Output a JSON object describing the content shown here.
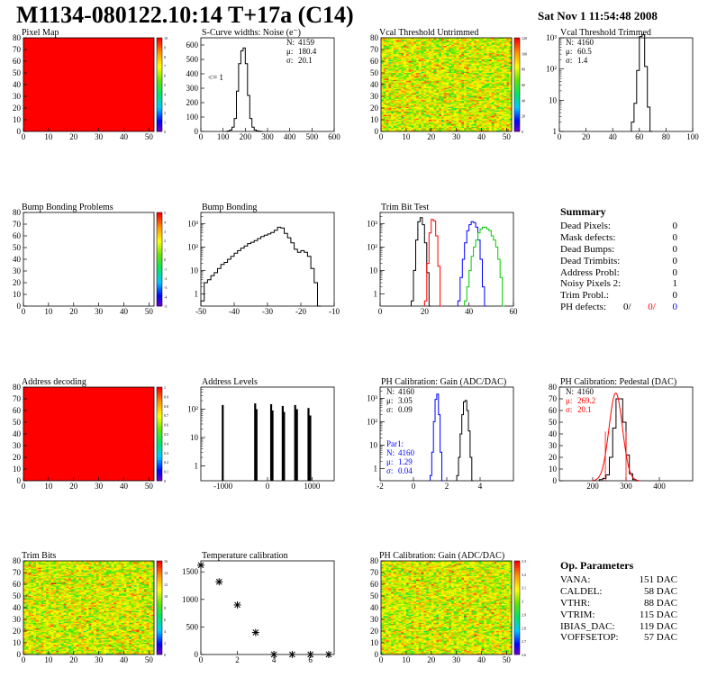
{
  "header": {
    "title": "M1134-080122.10:14 T+17a (C14)",
    "date": "Sat Nov  1 11:54:48 2008"
  },
  "colors": {
    "red": "#ff0000",
    "blue": "#0000ff",
    "green": "#00cc00",
    "black": "#000000"
  },
  "summary": {
    "title": "Summary",
    "rows": [
      {
        "label": "Dead Pixels:",
        "value": "0"
      },
      {
        "label": "Mask defects:",
        "value": "0"
      },
      {
        "label": "Dead Bumps:",
        "value": "0"
      },
      {
        "label": "Dead Trimbits:",
        "value": "0"
      },
      {
        "label": "Address Probl:",
        "value": "0"
      },
      {
        "label": "Noisy Pixels 2:",
        "value": "1"
      },
      {
        "label": "Trim Probl.:",
        "value": "0"
      }
    ],
    "ph_label": "PH defects:",
    "ph_v1": "0/",
    "ph_v2": "0/",
    "ph_v3": "0"
  },
  "params": {
    "title": "Op. Parameters",
    "rows": [
      {
        "label": "VANA:",
        "value": "151 DAC"
      },
      {
        "label": "CALDEL:",
        "value": "58 DAC"
      },
      {
        "label": "VTHR:",
        "value": "88 DAC"
      },
      {
        "label": "VTRIM:",
        "value": "115 DAC"
      },
      {
        "label": "IBIAS_DAC:",
        "value": "119 DAC"
      },
      {
        "label": "VOFFSETOP:",
        "value": "57 DAC"
      }
    ]
  },
  "chart_data": [
    {
      "id": "pixel-map",
      "type": "heatmap",
      "title": "Pixel Map",
      "xlim": [
        0,
        52
      ],
      "ylim": [
        0,
        80
      ],
      "xticks": [
        "0",
        "10",
        "20",
        "30",
        "40",
        "50"
      ],
      "yticks": [
        "0",
        "10",
        "20",
        "30",
        "40",
        "50",
        "60",
        "70",
        "80"
      ],
      "fill": "uniform",
      "z_value": 10,
      "palette_ticks": [
        "0",
        "1",
        "2",
        "3",
        "4",
        "5",
        "6",
        "7",
        "8",
        "9",
        "10"
      ]
    },
    {
      "id": "scurve",
      "type": "histogram",
      "title": "S-Curve widths: Noise (e⁻)",
      "xlim": [
        0,
        600
      ],
      "ylim": [
        0,
        650
      ],
      "log": false,
      "xticks": [
        "0",
        "100",
        "200",
        "300",
        "400",
        "500",
        "600"
      ],
      "yticks": [
        "0",
        "100",
        "200",
        "300",
        "400",
        "500",
        "600"
      ],
      "bins": [
        [
          110,
          0
        ],
        [
          120,
          3
        ],
        [
          130,
          10
        ],
        [
          140,
          30
        ],
        [
          150,
          90
        ],
        [
          160,
          280
        ],
        [
          170,
          470
        ],
        [
          180,
          560
        ],
        [
          190,
          580
        ],
        [
          200,
          470
        ],
        [
          210,
          250
        ],
        [
          220,
          90
        ],
        [
          230,
          30
        ],
        [
          240,
          10
        ],
        [
          250,
          4
        ],
        [
          260,
          2
        ],
        [
          270,
          0
        ]
      ],
      "stats": [
        {
          "label": "N:",
          "value": "4159"
        },
        {
          "label": "μ:",
          "value": "180.4"
        },
        {
          "label": "σ:",
          "value": "20.1"
        }
      ],
      "annotation": "<= 1"
    },
    {
      "id": "vcal-untrimmed",
      "type": "heatmap",
      "title": "Vcal Threshold Untrimmed",
      "xlim": [
        0,
        52
      ],
      "ylim": [
        0,
        80
      ],
      "xticks": [
        "0",
        "10",
        "20",
        "30",
        "40",
        "50"
      ],
      "yticks": [
        "0",
        "10",
        "20",
        "30",
        "40",
        "50",
        "60",
        "70",
        "80"
      ],
      "fill": "random",
      "z_range": [
        85,
        125
      ],
      "palette_ticks": [
        "0",
        "20",
        "40",
        "60",
        "80",
        "100",
        "120"
      ]
    },
    {
      "id": "vcal-trimmed",
      "type": "histogram",
      "title": "Vcal Threshold Trimmed",
      "xlim": [
        0,
        100
      ],
      "log": true,
      "ydecades": [
        1,
        1000
      ],
      "xticks": [
        "0",
        "20",
        "40",
        "60",
        "80",
        "100"
      ],
      "yticks": [
        "1",
        "10",
        "10²",
        "10³"
      ],
      "bins": [
        [
          54,
          2
        ],
        [
          56,
          8
        ],
        [
          58,
          90
        ],
        [
          60,
          1100
        ],
        [
          62,
          1250
        ],
        [
          64,
          120
        ],
        [
          66,
          6
        ],
        [
          68,
          0
        ]
      ],
      "stats": [
        {
          "label": "N:",
          "value": "4160"
        },
        {
          "label": "μ:",
          "value": "60.5"
        },
        {
          "label": "σ:",
          "value": "1.4"
        }
      ]
    },
    {
      "id": "bump-map",
      "type": "heatmap",
      "title": "Bump Bonding Problems",
      "xlim": [
        0,
        52
      ],
      "ylim": [
        0,
        80
      ],
      "xticks": [
        "0",
        "10",
        "20",
        "30",
        "40",
        "50"
      ],
      "yticks": [
        "0",
        "10",
        "20",
        "30",
        "40",
        "50",
        "60",
        "70",
        "80"
      ],
      "fill": "empty",
      "palette_ticks": [
        "-5",
        "-4",
        "-3",
        "-2",
        "-1",
        "0",
        "1",
        "2",
        "3",
        "4",
        "5"
      ]
    },
    {
      "id": "bump-bonding",
      "type": "histogram",
      "title": "Bump Bonding",
      "xlim": [
        -50,
        -10
      ],
      "log": true,
      "ydecades": [
        0.3,
        3000
      ],
      "xticks": [
        "-50",
        "-40",
        "-30",
        "-20",
        "-10"
      ],
      "yticks": [
        "1",
        "10",
        "10²",
        "10³"
      ],
      "bins": [
        [
          -50,
          0.5
        ],
        [
          -49,
          3
        ],
        [
          -48,
          4
        ],
        [
          -47,
          6
        ],
        [
          -46,
          8
        ],
        [
          -45,
          12
        ],
        [
          -44,
          18
        ],
        [
          -43,
          22
        ],
        [
          -42,
          30
        ],
        [
          -41,
          40
        ],
        [
          -40,
          55
        ],
        [
          -39,
          70
        ],
        [
          -38,
          90
        ],
        [
          -37,
          110
        ],
        [
          -36,
          140
        ],
        [
          -35,
          160
        ],
        [
          -34,
          190
        ],
        [
          -33,
          230
        ],
        [
          -32,
          280
        ],
        [
          -31,
          320
        ],
        [
          -30,
          360
        ],
        [
          -29,
          420
        ],
        [
          -28,
          520
        ],
        [
          -27,
          700
        ],
        [
          -26,
          650
        ],
        [
          -25,
          380
        ],
        [
          -24,
          250
        ],
        [
          -23,
          150
        ],
        [
          -22,
          80
        ],
        [
          -21,
          60
        ],
        [
          -20,
          70
        ],
        [
          -19,
          60
        ],
        [
          -18,
          40
        ],
        [
          -17,
          12
        ],
        [
          -16,
          3
        ],
        [
          -15,
          0
        ]
      ]
    },
    {
      "id": "trim-bit-test",
      "type": "histogram",
      "title": "Trim Bit Test",
      "xlim": [
        0,
        60
      ],
      "log": true,
      "ydecades": [
        0.3,
        3000
      ],
      "xticks": [
        "0",
        "20",
        "40",
        "60"
      ],
      "yticks": [
        "1",
        "10",
        "10²",
        "10³"
      ],
      "series": [
        {
          "color": "#000000",
          "bins": [
            [
              14,
              0.5
            ],
            [
              15,
              10
            ],
            [
              16,
              200
            ],
            [
              17,
              1200
            ],
            [
              18,
              1800
            ],
            [
              19,
              900
            ],
            [
              20,
              150
            ],
            [
              21,
              8
            ],
            [
              22,
              0
            ]
          ]
        },
        {
          "color": "#ff0000",
          "bins": [
            [
              20,
              0.5
            ],
            [
              21,
              20
            ],
            [
              22,
              400
            ],
            [
              23,
              1500
            ],
            [
              24,
              1300
            ],
            [
              25,
              300
            ],
            [
              26,
              15
            ],
            [
              27,
              0
            ]
          ]
        },
        {
          "color": "#0000ff",
          "bins": [
            [
              35,
              0.5
            ],
            [
              36,
              5
            ],
            [
              37,
              30
            ],
            [
              38,
              150
            ],
            [
              39,
              500
            ],
            [
              40,
              900
            ],
            [
              41,
              1200
            ],
            [
              42,
              1100
            ],
            [
              43,
              700
            ],
            [
              44,
              200
            ],
            [
              45,
              30
            ],
            [
              46,
              2
            ],
            [
              47,
              0
            ]
          ]
        },
        {
          "color": "#00cc00",
          "bins": [
            [
              38,
              0.5
            ],
            [
              39,
              2
            ],
            [
              40,
              10
            ],
            [
              41,
              40
            ],
            [
              42,
              100
            ],
            [
              43,
              200
            ],
            [
              44,
              400
            ],
            [
              45,
              600
            ],
            [
              46,
              700
            ],
            [
              47,
              700
            ],
            [
              48,
              600
            ],
            [
              49,
              500
            ],
            [
              50,
              300
            ],
            [
              51,
              200
            ],
            [
              52,
              100
            ],
            [
              53,
              30
            ],
            [
              54,
              5
            ],
            [
              55,
              0
            ]
          ]
        }
      ]
    },
    {
      "id": "address-decoding",
      "type": "heatmap",
      "title": "Address decoding",
      "xlim": [
        0,
        52
      ],
      "ylim": [
        0,
        80
      ],
      "xticks": [
        "0",
        "10",
        "20",
        "30",
        "40",
        "50"
      ],
      "yticks": [
        "0",
        "10",
        "20",
        "30",
        "40",
        "50",
        "60",
        "70",
        "80"
      ],
      "fill": "uniform",
      "z_value": 1,
      "palette_ticks": [
        "0",
        "0.1",
        "0.2",
        "0.3",
        "0.4",
        "0.5",
        "0.6",
        "0.7",
        "0.8",
        "0.9",
        "1"
      ]
    },
    {
      "id": "address-levels",
      "type": "histogram",
      "title": "Address Levels",
      "xlim": [
        -1500,
        1500
      ],
      "log": true,
      "ydecades": [
        0.3,
        600
      ],
      "xticks": [
        "-1000",
        "0",
        "1000"
      ],
      "yticks": [
        "1",
        "10",
        "10²"
      ],
      "spikes": [
        [
          -1010,
          140
        ],
        [
          -280,
          160
        ],
        [
          -250,
          100
        ],
        [
          80,
          150
        ],
        [
          110,
          90
        ],
        [
          340,
          130
        ],
        [
          370,
          80
        ],
        [
          620,
          140
        ],
        [
          660,
          100
        ],
        [
          920,
          110
        ],
        [
          960,
          60
        ]
      ]
    },
    {
      "id": "ph-gain",
      "type": "histogram",
      "title": "PH Calibration: Gain (ADC/DAC)",
      "xlim": [
        -2,
        6
      ],
      "log": true,
      "ydecades": [
        0.3,
        3000
      ],
      "xticks": [
        "-2",
        "0",
        "2",
        "4"
      ],
      "yticks": [
        "1",
        "10",
        "10²",
        "10³"
      ],
      "series": [
        {
          "color": "#000000",
          "bins": [
            [
              2.6,
              0.5
            ],
            [
              2.7,
              3
            ],
            [
              2.8,
              30
            ],
            [
              2.9,
              200
            ],
            [
              3.0,
              700
            ],
            [
              3.1,
              800
            ],
            [
              3.2,
              300
            ],
            [
              3.3,
              40
            ],
            [
              3.4,
              3
            ],
            [
              3.5,
              0
            ]
          ]
        },
        {
          "color": "#0000ff",
          "bins": [
            [
              1.0,
              0.5
            ],
            [
              1.1,
              5
            ],
            [
              1.2,
              100
            ],
            [
              1.3,
              900
            ],
            [
              1.4,
              1500
            ],
            [
              1.5,
              200
            ],
            [
              1.6,
              5
            ],
            [
              1.7,
              0
            ]
          ]
        }
      ],
      "stats": [
        {
          "label": "N:",
          "value": "4160"
        },
        {
          "label": "μ:",
          "value": "3.05"
        },
        {
          "label": "σ:",
          "value": "0.09"
        }
      ],
      "stats2_title": "Par1:",
      "stats2": [
        {
          "label": "N:",
          "value": "4160"
        },
        {
          "label": "μ:",
          "value": "1.29"
        },
        {
          "label": "σ:",
          "value": "0.04"
        }
      ]
    },
    {
      "id": "ph-pedestal",
      "type": "histogram",
      "title": "PH Calibration: Pedestal (DAC)",
      "xlim": [
        100,
        500
      ],
      "ylim": [
        0,
        80
      ],
      "log": false,
      "xticks": [
        "200",
        "300",
        "400"
      ],
      "yticks": [
        "0",
        "10",
        "20",
        "30",
        "40",
        "50",
        "60",
        "70",
        "80"
      ],
      "bins": [
        [
          220,
          1
        ],
        [
          230,
          2
        ],
        [
          240,
          5
        ],
        [
          250,
          20
        ],
        [
          260,
          45
        ],
        [
          270,
          70
        ],
        [
          280,
          70
        ],
        [
          290,
          50
        ],
        [
          300,
          22
        ],
        [
          310,
          6
        ],
        [
          320,
          1
        ],
        [
          330,
          0
        ]
      ],
      "stats": [
        {
          "label": "N:",
          "value": "4160",
          "color": "#000000"
        },
        {
          "label": "μ:",
          "value": "269.2",
          "color": "#ff0000"
        },
        {
          "label": "σ:",
          "value": "20.1",
          "color": "#ff0000"
        }
      ]
    },
    {
      "id": "trim-bits",
      "type": "heatmap",
      "title": "Trim Bits",
      "xlim": [
        0,
        52
      ],
      "ylim": [
        0,
        80
      ],
      "xticks": [
        "0",
        "10",
        "20",
        "30",
        "40",
        "50"
      ],
      "yticks": [
        "0",
        "10",
        "20",
        "30",
        "40",
        "50",
        "60",
        "70",
        "80"
      ],
      "fill": "random",
      "z_range": [
        5,
        11
      ],
      "palette_ticks": [
        "0",
        "2",
        "4",
        "6",
        "8",
        "10",
        "12",
        "14",
        "16"
      ]
    },
    {
      "id": "temperature",
      "type": "scatter",
      "title": "Temperature calibration",
      "xlim": [
        0,
        7.3
      ],
      "ylim": [
        0,
        1700
      ],
      "xticks": [
        "0",
        "2",
        "4",
        "6"
      ],
      "yticks": [
        "0",
        "500",
        "1000",
        "1500"
      ],
      "points": [
        [
          0,
          1620
        ],
        [
          1,
          1320
        ],
        [
          2,
          900
        ],
        [
          3,
          400
        ],
        [
          4,
          0
        ],
        [
          5,
          0
        ],
        [
          6,
          0
        ],
        [
          7,
          0
        ]
      ]
    },
    {
      "id": "ph-gain-map",
      "type": "heatmap",
      "title": "PH Calibration: Gain (ADC/DAC)",
      "xlim": [
        0,
        52
      ],
      "ylim": [
        0,
        80
      ],
      "xticks": [
        "0",
        "10",
        "20",
        "30",
        "40",
        "50"
      ],
      "yticks": [
        "0",
        "10",
        "20",
        "30",
        "40",
        "50",
        "60",
        "70",
        "80"
      ],
      "fill": "random",
      "z_range": [
        2.7,
        3.2
      ],
      "palette_ticks": [
        "2.6",
        "2.7",
        "2.8",
        "2.9",
        "3",
        "3.1",
        "3.2",
        "3.3"
      ]
    }
  ]
}
